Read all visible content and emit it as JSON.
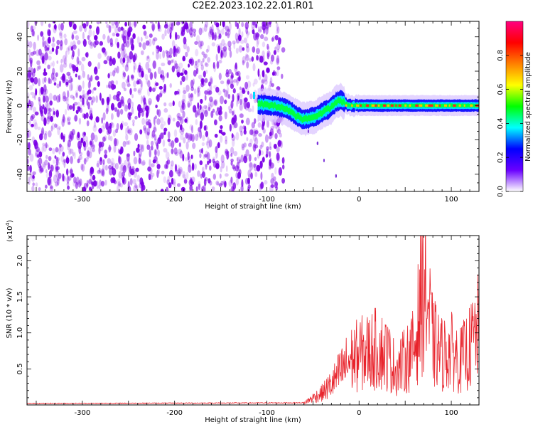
{
  "figure": {
    "title": "C2E2.2023.102.22.01.R01"
  },
  "colors": {
    "noise": "#7b00e6",
    "line": "#e8242c",
    "colorbar_stops": [
      "#ffffff",
      "#6a00ff",
      "#0000ff",
      "#00ffff",
      "#00ff00",
      "#ffff00",
      "#ff8000",
      "#ff0000",
      "#ff0080"
    ]
  },
  "chart_data": [
    {
      "type": "heatmap",
      "name": "spectrogram",
      "xlabel": "Height of straight line (km)",
      "ylabel": "Frequency (Hz)",
      "xlim": [
        -360,
        130
      ],
      "ylim": [
        -50,
        49
      ],
      "x_ticks": [
        -300,
        -200,
        -100,
        0,
        100
      ],
      "y_ticks": [
        40,
        20,
        0,
        -20,
        -40
      ],
      "colorbar": {
        "label": "Normalized spectral amplitude",
        "range": [
          0,
          1
        ],
        "ticks": [
          "0.0",
          "0.2",
          "0.4",
          "0.6",
          "0.8"
        ]
      },
      "noise_region_x": [
        -360,
        -82
      ],
      "signal_trace": {
        "x": [
          -110,
          -95,
          -85,
          -75,
          -68,
          -60,
          -50,
          -40,
          -30,
          -25,
          -20,
          -15,
          -10,
          0,
          20,
          60,
          100,
          130
        ],
        "frequency_hz": [
          1,
          0,
          -1,
          -3,
          -6,
          -8,
          -7,
          -4,
          -1,
          2,
          3,
          1,
          0,
          0,
          0,
          0,
          0,
          0
        ]
      }
    },
    {
      "type": "line",
      "name": "snr",
      "xlabel": "Height of straight line (km)",
      "ylabel": "SNR (10 * v/v)",
      "scale_label": "(x10",
      "scale_exponent": "4",
      "scale_close": ")",
      "xlim": [
        -360,
        130
      ],
      "ylim": [
        0,
        2.35
      ],
      "x_ticks": [
        -300,
        -200,
        -100,
        0,
        100
      ],
      "y_ticks": [
        "0.5",
        "1.0",
        "1.5",
        "2.0"
      ],
      "series_anchors": {
        "x": [
          -360,
          -60,
          -50,
          -40,
          -30,
          -20,
          -10,
          0,
          10,
          20,
          30,
          40,
          50,
          60,
          65,
          70,
          75,
          80,
          90,
          100,
          110,
          120,
          130
        ],
        "y": [
          0.02,
          0.03,
          0.12,
          0.2,
          0.35,
          0.55,
          0.75,
          0.85,
          0.9,
          0.95,
          0.85,
          0.6,
          0.75,
          0.95,
          1.5,
          2.1,
          1.6,
          1.05,
          0.85,
          0.9,
          0.75,
          0.95,
          1.3
        ]
      }
    }
  ]
}
